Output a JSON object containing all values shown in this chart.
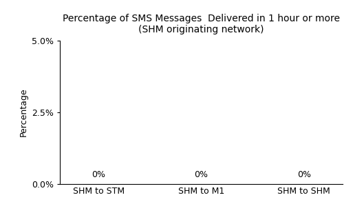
{
  "title_line1": "Percentage of SMS Messages  Delivered in 1 hour or more",
  "title_line2": "(SHM originating network)",
  "categories": [
    "SHM to STM",
    "SHM to M1",
    "SHM to SHM"
  ],
  "values": [
    0,
    0,
    0
  ],
  "bar_color": "#4f81bd",
  "ylabel": "Percentage",
  "ylim": [
    0,
    0.05
  ],
  "yticks": [
    0.0,
    0.025,
    0.05
  ],
  "ytick_labels": [
    "0.0%",
    "2.5%",
    "5.0%"
  ],
  "annotation_labels": [
    "0%",
    "0%",
    "0%"
  ],
  "background_color": "#ffffff",
  "title_fontsize": 10,
  "axis_label_fontsize": 9,
  "tick_fontsize": 9,
  "annotation_fontsize": 9
}
